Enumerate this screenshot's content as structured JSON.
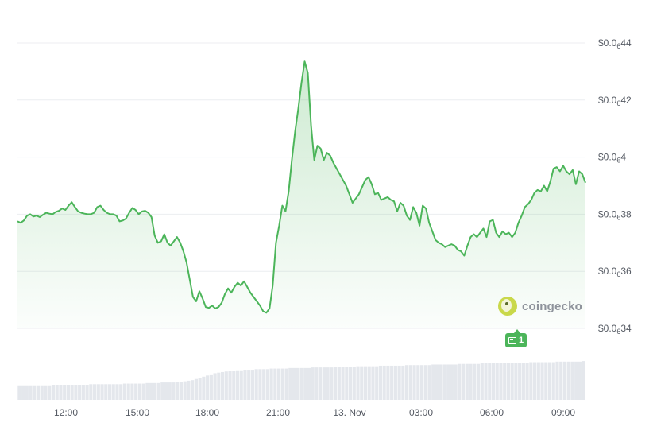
{
  "chart_data": {
    "type": "area",
    "series": [
      {
        "values": [
          37.75,
          37.7,
          37.78,
          37.95,
          38.0,
          37.92,
          37.95,
          37.9,
          37.98,
          38.05,
          38.02,
          38.0,
          38.08,
          38.12,
          38.2,
          38.15,
          38.3,
          38.42,
          38.25,
          38.1,
          38.05,
          38.02,
          38.0,
          38.0,
          38.05,
          38.25,
          38.3,
          38.15,
          38.05,
          38.0,
          38.0,
          37.95,
          37.75,
          37.78,
          37.85,
          38.05,
          38.22,
          38.15,
          38.0,
          38.1,
          38.12,
          38.05,
          37.9,
          37.25,
          37.0,
          37.05,
          37.3,
          37.0,
          36.9,
          37.05,
          37.2,
          37.0,
          36.7,
          36.3,
          35.7,
          35.1,
          34.95,
          35.3,
          35.05,
          34.75,
          34.72,
          34.8,
          34.7,
          34.75,
          34.9,
          35.2,
          35.4,
          35.25,
          35.45,
          35.6,
          35.5,
          35.65,
          35.45,
          35.25,
          35.1,
          34.95,
          34.8,
          34.6,
          34.55,
          34.7,
          35.5,
          37.0,
          37.6,
          38.3,
          38.1,
          38.8,
          39.9,
          40.9,
          41.7,
          42.6,
          43.35,
          42.95,
          41.1,
          39.9,
          40.4,
          40.3,
          39.9,
          40.15,
          40.05,
          39.8,
          39.6,
          39.4,
          39.2,
          39.0,
          38.7,
          38.4,
          38.55,
          38.7,
          38.95,
          39.2,
          39.3,
          39.05,
          38.7,
          38.75,
          38.5,
          38.55,
          38.6,
          38.5,
          38.45,
          38.1,
          38.4,
          38.3,
          37.95,
          37.8,
          38.25,
          38.05,
          37.6,
          38.3,
          38.2,
          37.7,
          37.4,
          37.1,
          37.0,
          36.95,
          36.85,
          36.9,
          36.95,
          36.9,
          36.75,
          36.7,
          36.55,
          36.9,
          37.2,
          37.3,
          37.2,
          37.35,
          37.5,
          37.2,
          37.75,
          37.8,
          37.35,
          37.2,
          37.4,
          37.3,
          37.35,
          37.2,
          37.35,
          37.7,
          37.95,
          38.25,
          38.35,
          38.5,
          38.75,
          38.85,
          38.8,
          39.0,
          38.8,
          39.15,
          39.6,
          39.65,
          39.5,
          39.7,
          39.5,
          39.4,
          39.55,
          39.05,
          39.5,
          39.4,
          39.1
        ]
      }
    ],
    "x_ticks": [
      "12:00",
      "15:00",
      "18:00",
      "21:00",
      "13. Nov",
      "03:00",
      "06:00",
      "09:00"
    ],
    "y_ticks": [
      {
        "pre": "$0.0",
        "sub": "6",
        "post": "34",
        "value": 34
      },
      {
        "pre": "$0.0",
        "sub": "6",
        "post": "36",
        "value": 36
      },
      {
        "pre": "$0.0",
        "sub": "6",
        "post": "38",
        "value": 38
      },
      {
        "pre": "$0.0",
        "sub": "6",
        "post": "4",
        "value": 40
      },
      {
        "pre": "$0.0",
        "sub": "6",
        "post": "42",
        "value": 42
      },
      {
        "pre": "$0.0",
        "sub": "6",
        "post": "44",
        "value": 44
      }
    ],
    "ylim": [
      34,
      44
    ],
    "volume": [
      0.25,
      0.25,
      0.25,
      0.25,
      0.25,
      0.25,
      0.25,
      0.25,
      0.25,
      0.26,
      0.26,
      0.26,
      0.26,
      0.26,
      0.26,
      0.26,
      0.26,
      0.26,
      0.26,
      0.27,
      0.27,
      0.27,
      0.27,
      0.27,
      0.27,
      0.27,
      0.27,
      0.27,
      0.28,
      0.28,
      0.28,
      0.28,
      0.28,
      0.28,
      0.29,
      0.29,
      0.29,
      0.29,
      0.3,
      0.3,
      0.3,
      0.3,
      0.31,
      0.31,
      0.32,
      0.33,
      0.34,
      0.36,
      0.38,
      0.4,
      0.42,
      0.44,
      0.46,
      0.47,
      0.48,
      0.49,
      0.5,
      0.5,
      0.51,
      0.51,
      0.52,
      0.52,
      0.52,
      0.53,
      0.53,
      0.53,
      0.53,
      0.54,
      0.54,
      0.54,
      0.54,
      0.54,
      0.55,
      0.55,
      0.55,
      0.55,
      0.55,
      0.55,
      0.56,
      0.56,
      0.56,
      0.56,
      0.56,
      0.56,
      0.57,
      0.57,
      0.57,
      0.57,
      0.57,
      0.57,
      0.58,
      0.58,
      0.58,
      0.58,
      0.58,
      0.58,
      0.59,
      0.59,
      0.59,
      0.59,
      0.59,
      0.59,
      0.59,
      0.6,
      0.6,
      0.6,
      0.6,
      0.6,
      0.6,
      0.6,
      0.61,
      0.61,
      0.61,
      0.61,
      0.61,
      0.61,
      0.61,
      0.62,
      0.62,
      0.62,
      0.62,
      0.62,
      0.62,
      0.63,
      0.63,
      0.63,
      0.63,
      0.63,
      0.63,
      0.63,
      0.64,
      0.64,
      0.64,
      0.64,
      0.64,
      0.64,
      0.65,
      0.65,
      0.65,
      0.65,
      0.65,
      0.65,
      0.65,
      0.66,
      0.66,
      0.66,
      0.66,
      0.66,
      0.66,
      0.66,
      0.67
    ],
    "colors": {
      "line": "#4cb55a",
      "area_top": "#4cb55a",
      "volume": "#e4e7ec",
      "grid": "#eceef1"
    },
    "grid": true,
    "legend": "none"
  },
  "watermark": {
    "text": "coingecko"
  },
  "event_badge": {
    "count": "1"
  }
}
